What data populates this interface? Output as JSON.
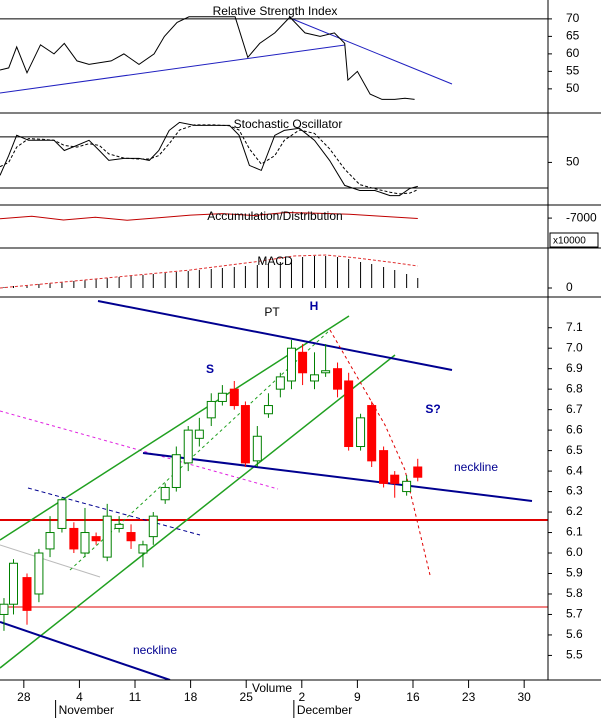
{
  "chart_data": [
    {
      "type": "line",
      "title": "Relative Strength Index",
      "ylim": [
        43.1,
        75.4
      ],
      "yticks": [
        70,
        65,
        60,
        55,
        50
      ],
      "levels": [
        70
      ],
      "series": [
        {
          "color": "#000000",
          "dash": false,
          "x": [
            -3,
            -1.9,
            -0.9,
            0.4,
            2.1,
            3.8,
            5.1,
            6.7,
            8.2,
            11,
            12.6,
            14.5,
            16.4,
            17.7,
            19.3,
            20.8,
            23.4,
            26.6,
            28.2,
            29.7,
            31.6,
            33.5,
            35.4,
            37.3,
            39.1,
            40.4,
            40.8,
            42,
            43.6,
            45.1,
            46.7,
            48,
            49.2
          ],
          "values": [
            55.4,
            56,
            62,
            54.6,
            62.6,
            60,
            63,
            58,
            57,
            58,
            60,
            57,
            60,
            65,
            69,
            70.6,
            70.6,
            70.6,
            59,
            63,
            66,
            70.5,
            66,
            65,
            66,
            63,
            52.5,
            55,
            48.5,
            47,
            47,
            47.3,
            47
          ]
        }
      ]
    },
    {
      "type": "line",
      "title": "Stochastic Oscillator",
      "ylim": [
        0,
        108
      ],
      "yticks": [
        50
      ],
      "levels": [
        80,
        20
      ],
      "series": [
        {
          "color": "#000000",
          "dash": false,
          "x": [
            -3,
            -1.9,
            -0.9,
            0.6,
            2.5,
            3.8,
            5.1,
            6.7,
            8.2,
            9.5,
            10.7,
            12.6,
            14.5,
            15.8,
            17,
            18.3,
            19.6,
            21.5,
            24,
            25.9,
            27.1,
            28.4,
            29.9,
            31.6,
            32.8,
            34.7,
            36.6,
            38.5,
            40.4,
            42.3,
            44.2,
            46.1,
            47.3,
            48.6,
            49.6
          ],
          "values": [
            34.7,
            58,
            81.8,
            75.9,
            75.9,
            75.9,
            64,
            70,
            75.9,
            64,
            52.4,
            54.7,
            54.7,
            52.4,
            64,
            87.6,
            97,
            93.5,
            93.5,
            93.5,
            81.8,
            46.5,
            40.6,
            81.8,
            87.6,
            90,
            75.9,
            52.4,
            23,
            17,
            17,
            11,
            11,
            19.4,
            21.8
          ]
        },
        {
          "color": "#000000",
          "dash": true,
          "x": [
            -3,
            -1.9,
            -0.9,
            0.6,
            2.5,
            3.8,
            5.1,
            6.7,
            8.2,
            9.5,
            10.7,
            12.6,
            14.5,
            15.8,
            17,
            18.3,
            19.6,
            21.5,
            24,
            25.9,
            27.1,
            28.4,
            29.9,
            31.6,
            32.8,
            34.7,
            36.6,
            38.5,
            40.4,
            42.3,
            44.2,
            46.1,
            47.3,
            48.6,
            49.6
          ],
          "values": [
            45,
            50,
            68,
            78,
            77,
            76,
            70,
            68,
            72,
            70,
            60,
            55,
            54,
            54,
            58,
            72,
            88,
            94,
            94,
            93,
            88,
            66,
            48,
            58,
            76,
            88,
            84,
            66,
            42,
            24,
            19,
            15,
            13,
            14,
            18
          ]
        }
      ]
    },
    {
      "type": "line",
      "title": "Accumulation/Distribution",
      "ylim": [
        -7800,
        -6650
      ],
      "yticks": [
        -7000
      ],
      "unit_label": "x10000",
      "series": [
        {
          "color": "#c00000",
          "dash": false,
          "x": [
            -3,
            1,
            5,
            9,
            13,
            17,
            21,
            25,
            29,
            33,
            37,
            41,
            45,
            49.6
          ],
          "values": [
            -7020,
            -6950,
            -7050,
            -6980,
            -7060,
            -6990,
            -6920,
            -6880,
            -6930,
            -6850,
            -6870,
            -6900,
            -6950,
            -7010
          ]
        }
      ]
    },
    {
      "type": "bar",
      "title": "MACD",
      "ylim": [
        -0.045,
        0.2
      ],
      "yticks": [
        0
      ],
      "color": "#000000",
      "x": [
        -2.5,
        -1.3,
        0.4,
        1.9,
        3.3,
        4.8,
        6.3,
        7.7,
        9.1,
        10.5,
        12,
        13.5,
        15,
        16.3,
        17.8,
        19.2,
        20.7,
        22.1,
        23.6,
        25,
        26.5,
        27.9,
        29.4,
        30.8,
        32.3,
        33.7,
        35.1,
        36.6,
        38,
        39.5,
        40.9,
        42.4,
        43.8,
        45.3,
        46.7,
        48.2,
        49.6
      ],
      "values": [
        0.005,
        0.01,
        0.015,
        0.02,
        0.025,
        0.03,
        0.035,
        0.04,
        0.045,
        0.05,
        0.055,
        0.06,
        0.065,
        0.07,
        0.075,
        0.08,
        0.085,
        0.09,
        0.095,
        0.1,
        0.105,
        0.11,
        0.115,
        0.12,
        0.13,
        0.14,
        0.155,
        0.16,
        0.16,
        0.155,
        0.145,
        0.13,
        0.12,
        0.105,
        0.09,
        0.07,
        0.05
      ],
      "series": [
        {
          "color": "#e03030",
          "dash": true,
          "x": [
            -3,
            5,
            13,
            21,
            29,
            34,
            38,
            42,
            46,
            49.6
          ],
          "values": [
            0,
            0.03,
            0.06,
            0.09,
            0.13,
            0.16,
            0.165,
            0.15,
            0.13,
            0.11
          ]
        }
      ]
    },
    {
      "type": "candlestick",
      "ylim": [
        5.38,
        7.25
      ],
      "yticks": [
        7.1,
        {
          "value": 7,
          "label": "7.0"
        },
        6.9,
        6.8,
        6.7,
        6.6,
        6.5,
        6.4,
        6.3,
        6.2,
        6.1,
        {
          "value": 6,
          "label": "6.0"
        },
        5.9,
        5.8,
        5.7,
        5.6,
        5.5
      ],
      "xlim": [
        -3,
        66
      ],
      "xticks": [
        {
          "value": 0,
          "label": "28"
        },
        {
          "value": 7,
          "label": "4"
        },
        {
          "value": 14,
          "label": "11"
        },
        {
          "value": 21,
          "label": "18"
        },
        {
          "value": 28,
          "label": "25"
        },
        {
          "value": 35,
          "label": "2"
        },
        {
          "value": 42,
          "label": "9"
        },
        {
          "value": 49,
          "label": "16"
        },
        {
          "value": 56,
          "label": "23"
        },
        {
          "value": 63,
          "label": "30"
        }
      ],
      "months": [
        {
          "value": 4,
          "label": "November"
        },
        {
          "value": 34,
          "label": "December"
        }
      ],
      "xlabel": "Volume",
      "up_color": "#008000",
      "down_color": "#ff0000",
      "x": [
        -2.5,
        -1.3,
        0.4,
        1.9,
        3.3,
        4.8,
        6.3,
        7.7,
        9.1,
        10.5,
        12,
        13.5,
        15,
        16.3,
        17.8,
        19.2,
        20.7,
        22.1,
        23.6,
        25,
        26.5,
        27.9,
        29.4,
        30.8,
        32.3,
        33.7,
        35.1,
        36.6,
        38,
        39.5,
        40.9,
        42.4,
        43.8,
        45.3,
        46.7,
        48.2,
        49.6
      ],
      "open": [
        5.7,
        5.75,
        5.88,
        5.8,
        6.02,
        6.12,
        6.12,
        6.0,
        6.08,
        5.98,
        6.12,
        6.1,
        6.0,
        6.08,
        6.26,
        6.32,
        6.44,
        6.56,
        6.66,
        6.74,
        6.8,
        6.72,
        6.45,
        6.68,
        6.8,
        6.84,
        6.98,
        6.84,
        6.88,
        6.9,
        6.84,
        6.52,
        6.72,
        6.5,
        6.38,
        6.3,
        6.42
      ],
      "high": [
        5.78,
        5.97,
        5.9,
        6.02,
        6.18,
        6.27,
        6.15,
        6.22,
        6.1,
        6.24,
        6.18,
        6.14,
        6.06,
        6.2,
        6.34,
        6.52,
        6.62,
        6.66,
        6.78,
        6.82,
        6.84,
        6.74,
        6.62,
        6.78,
        6.88,
        7.04,
        7.02,
        6.98,
        7.02,
        6.93,
        6.88,
        6.68,
        6.74,
        6.52,
        6.4,
        6.38,
        6.46
      ],
      "low": [
        5.62,
        5.7,
        5.65,
        5.76,
        5.98,
        6.1,
        6.0,
        5.98,
        6.04,
        5.96,
        6.1,
        6.02,
        5.93,
        6.04,
        6.24,
        6.3,
        6.4,
        6.52,
        6.62,
        6.72,
        6.7,
        6.42,
        6.42,
        6.66,
        6.76,
        6.8,
        6.82,
        6.8,
        6.86,
        6.76,
        6.5,
        6.5,
        6.42,
        6.32,
        6.27,
        6.28,
        6.35
      ],
      "close": [
        5.75,
        5.95,
        5.72,
        6.0,
        6.1,
        6.26,
        6.02,
        6.1,
        6.06,
        6.18,
        6.14,
        6.06,
        6.04,
        6.18,
        6.32,
        6.48,
        6.6,
        6.6,
        6.74,
        6.78,
        6.72,
        6.44,
        6.57,
        6.72,
        6.86,
        7.0,
        6.88,
        6.87,
        6.89,
        6.8,
        6.52,
        6.66,
        6.45,
        6.34,
        6.34,
        6.35,
        6.37
      ],
      "annotations": [
        "PT",
        "H",
        "S",
        "S?",
        "neckline",
        "neckline"
      ]
    }
  ]
}
